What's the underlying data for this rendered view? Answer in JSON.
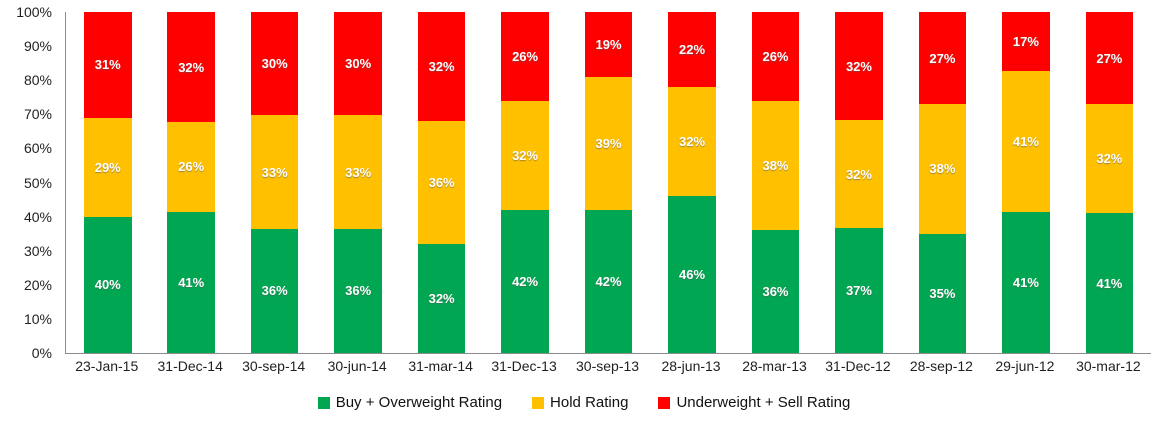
{
  "chart_data": {
    "type": "bar",
    "stacked": true,
    "percent_stacked": true,
    "title": "",
    "xlabel": "",
    "ylabel": "",
    "categories": [
      "23-Jan-15",
      "31-Dec-14",
      "30-sep-14",
      "30-jun-14",
      "31-mar-14",
      "31-Dec-13",
      "30-sep-13",
      "28-jun-13",
      "28-mar-13",
      "31-Dec-12",
      "28-sep-12",
      "29-jun-12",
      "30-mar-12"
    ],
    "series": [
      {
        "name": "Buy + Overweight Rating",
        "color": "#00A651",
        "values": [
          40,
          41,
          36,
          36,
          32,
          42,
          42,
          46,
          36,
          37,
          35,
          41,
          41
        ],
        "labels": [
          "40%",
          "41%",
          "36%",
          "36%",
          "32%",
          "42%",
          "42%",
          "46%",
          "36%",
          "37%",
          "35%",
          "41%",
          "41%"
        ]
      },
      {
        "name": "Hold Rating",
        "color": "#FFC000",
        "values": [
          29,
          26,
          33,
          33,
          36,
          32,
          39,
          32,
          38,
          32,
          38,
          41,
          32
        ],
        "labels": [
          "29%",
          "26%",
          "33%",
          "33%",
          "36%",
          "32%",
          "39%",
          "32%",
          "38%",
          "32%",
          "38%",
          "41%",
          "32%"
        ]
      },
      {
        "name": "Underweight + Sell Rating",
        "color": "#FF0000",
        "values": [
          31,
          32,
          30,
          30,
          32,
          26,
          19,
          22,
          26,
          32,
          27,
          17,
          27
        ],
        "labels": [
          "31%",
          "32%",
          "30%",
          "30%",
          "32%",
          "26%",
          "19%",
          "22%",
          "26%",
          "32%",
          "27%",
          "17%",
          "27%"
        ]
      }
    ],
    "y_axis": {
      "min": 0,
      "max": 100,
      "tick_step": 10,
      "tick_labels": [
        "0%",
        "10%",
        "20%",
        "30%",
        "40%",
        "50%",
        "60%",
        "70%",
        "80%",
        "90%",
        "100%"
      ]
    },
    "grid": "off",
    "legend_position": "bottom",
    "label_text_color": "#FFFFFF",
    "axis_line_color": "#8C8C8C"
  }
}
